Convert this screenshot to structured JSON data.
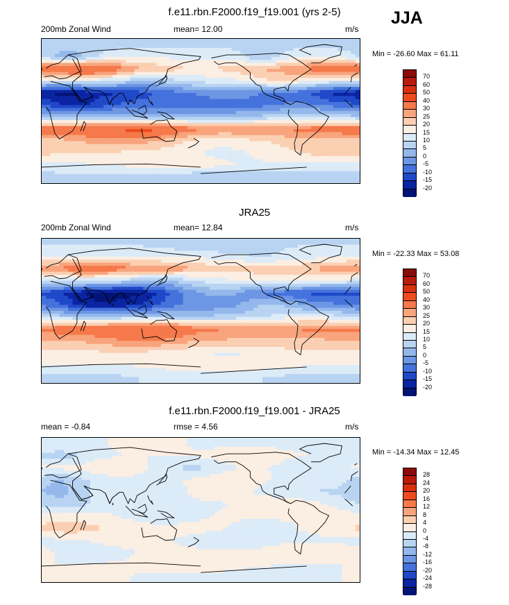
{
  "season_label": "JJA",
  "panels": [
    {
      "title": "f.e11.rbn.F2000.f19_f19.001 (yrs 2-5)",
      "left_label": "200mb Zonal Wind",
      "center_label": "mean=  12.00",
      "units": "m/s",
      "minmax": "Min = -26.60 Max =  61.11",
      "colorbar_labels": [
        "70",
        "60",
        "50",
        "40",
        "30",
        "25",
        "20",
        "15",
        "10",
        "5",
        "0",
        "-5",
        "-10",
        "-15",
        "-20"
      ],
      "colorbar_colors": [
        "#8a0b0b",
        "#b81a0c",
        "#d9310e",
        "#ef4c1e",
        "#f5794b",
        "#f8a47c",
        "#fbcfb2",
        "#fbeee2",
        "#dcebf8",
        "#b9d4f2",
        "#94b8ec",
        "#6d97e4",
        "#4572dc",
        "#1f49c9",
        "#0a24a3",
        "#031476"
      ],
      "rows": [
        {
          "v": 8,
          "blobs": []
        },
        {
          "v": 14,
          "blobs": [
            {
              "lon": 30,
              "w": 22,
              "v": 2
            },
            {
              "lon": 250,
              "w": 15,
              "v": 5
            }
          ]
        },
        {
          "v": 26,
          "blobs": [
            {
              "lon": 50,
              "w": 30,
              "v": 42
            },
            {
              "lon": 330,
              "w": 35,
              "v": 34
            },
            {
              "lon": 180,
              "w": 40,
              "v": 20
            }
          ]
        },
        {
          "v": 12,
          "blobs": [
            {
              "lon": 270,
              "w": 30,
              "v": 20
            },
            {
              "lon": 120,
              "w": 25,
              "v": 5
            }
          ]
        },
        {
          "v": -6,
          "blobs": [
            {
              "lon": 25,
              "w": 28,
              "v": -20
            },
            {
              "lon": 90,
              "w": 30,
              "v": -14
            },
            {
              "lon": 330,
              "w": 25,
              "v": -14
            },
            {
              "lon": 210,
              "w": 25,
              "v": -2
            }
          ]
        },
        {
          "v": -8,
          "blobs": [
            {
              "lon": 40,
              "w": 25,
              "v": -16
            },
            {
              "lon": 290,
              "w": 25,
              "v": -4
            }
          ]
        },
        {
          "v": 4,
          "blobs": [
            {
              "lon": 300,
              "w": 40,
              "v": 10
            }
          ]
        },
        {
          "v": 30,
          "blobs": [
            {
              "lon": 60,
              "w": 40,
              "v": 37
            },
            {
              "lon": 120,
              "w": 30,
              "v": 40
            },
            {
              "lon": 330,
              "w": 30,
              "v": 34
            }
          ]
        },
        {
          "v": 22,
          "blobs": [
            {
              "lon": 90,
              "w": 40,
              "v": 28
            },
            {
              "lon": 200,
              "w": 35,
              "v": 16
            }
          ]
        },
        {
          "v": 19,
          "blobs": [
            {
              "lon": 210,
              "w": 45,
              "v": 14
            },
            {
              "lon": 330,
              "w": 40,
              "v": 22
            }
          ]
        },
        {
          "v": 14,
          "blobs": [
            {
              "lon": 150,
              "w": 45,
              "v": 18
            }
          ]
        },
        {
          "v": 5,
          "blobs": [
            {
              "lon": 60,
              "w": 50,
              "v": 9
            }
          ]
        }
      ]
    },
    {
      "title": "JRA25",
      "left_label": "200mb Zonal Wind",
      "center_label": "mean=  12.84",
      "units": "m/s",
      "minmax": "Min = -22.33 Max =  53.08",
      "colorbar_labels": [
        "70",
        "60",
        "50",
        "40",
        "30",
        "25",
        "20",
        "15",
        "10",
        "5",
        "0",
        "-5",
        "-10",
        "-15",
        "-20"
      ],
      "colorbar_colors": [
        "#8a0b0b",
        "#b81a0c",
        "#d9310e",
        "#ef4c1e",
        "#f5794b",
        "#f8a47c",
        "#fbcfb2",
        "#fbeee2",
        "#dcebf8",
        "#b9d4f2",
        "#94b8ec",
        "#6d97e4",
        "#4572dc",
        "#1f49c9",
        "#0a24a3",
        "#031476"
      ],
      "rows": [
        {
          "v": 10,
          "blobs": [
            {
              "lon": 200,
              "w": 40,
              "v": 5
            }
          ]
        },
        {
          "v": 14,
          "blobs": [
            {
              "lon": 250,
              "w": 30,
              "v": 10
            }
          ]
        },
        {
          "v": 22,
          "blobs": [
            {
              "lon": 60,
              "w": 40,
              "v": 34
            },
            {
              "lon": 340,
              "w": 30,
              "v": 28
            },
            {
              "lon": 140,
              "w": 30,
              "v": 28
            }
          ]
        },
        {
          "v": 12,
          "blobs": [
            {
              "lon": 270,
              "w": 40,
              "v": 18
            },
            {
              "lon": 130,
              "w": 30,
              "v": 4
            }
          ]
        },
        {
          "v": -8,
          "blobs": [
            {
              "lon": 60,
              "w": 35,
              "v": -20
            },
            {
              "lon": 110,
              "w": 25,
              "v": -16
            },
            {
              "lon": 320,
              "w": 25,
              "v": -12
            },
            {
              "lon": 200,
              "w": 30,
              "v": 2
            }
          ]
        },
        {
          "v": -4,
          "blobs": [
            {
              "lon": 60,
              "w": 30,
              "v": -18
            },
            {
              "lon": 110,
              "w": 25,
              "v": -12
            },
            {
              "lon": 260,
              "w": 25,
              "v": 6
            }
          ]
        },
        {
          "v": 6,
          "blobs": [
            {
              "lon": 300,
              "w": 40,
              "v": 14
            }
          ]
        },
        {
          "v": 30,
          "blobs": [
            {
              "lon": 120,
              "w": 35,
              "v": 40
            },
            {
              "lon": 40,
              "w": 30,
              "v": 34
            },
            {
              "lon": 330,
              "w": 25,
              "v": 32
            }
          ]
        },
        {
          "v": 24,
          "blobs": [
            {
              "lon": 110,
              "w": 40,
              "v": 30
            }
          ]
        },
        {
          "v": 19,
          "blobs": [
            {
              "lon": 210,
              "w": 40,
              "v": 14
            }
          ]
        },
        {
          "v": 15,
          "blobs": [
            {
              "lon": 200,
              "w": 50,
              "v": 20
            }
          ]
        },
        {
          "v": 8,
          "blobs": [
            {
              "lon": 180,
              "w": 60,
              "v": 12
            }
          ]
        }
      ]
    },
    {
      "title": "f.e11.rbn.F2000.f19_f19.001 - JRA25",
      "left_label": "mean =  -0.84",
      "center_label": "rmse =   4.56",
      "units": "m/s",
      "minmax": "Min = -14.34 Max =  12.45",
      "colorbar_labels": [
        "28",
        "24",
        "20",
        "16",
        "12",
        "8",
        "4",
        "0",
        "-4",
        "-8",
        "-12",
        "-16",
        "-20",
        "-24",
        "-28"
      ],
      "colorbar_colors": [
        "#8a0b0b",
        "#b81a0c",
        "#d9310e",
        "#ef4c1e",
        "#f5794b",
        "#f8a47c",
        "#fbcfb2",
        "#fbeee2",
        "#dcebf8",
        "#b9d4f2",
        "#94b8ec",
        "#6d97e4",
        "#4572dc",
        "#1f49c9",
        "#0a24a3",
        "#031476"
      ],
      "rows": [
        {
          "v": -1,
          "blobs": [
            {
              "lon": 120,
              "w": 30,
              "v": 2
            }
          ]
        },
        {
          "v": 0,
          "blobs": [
            {
              "lon": 20,
              "w": 25,
              "v": -6
            },
            {
              "lon": 230,
              "w": 30,
              "v": 3
            }
          ]
        },
        {
          "v": 1,
          "blobs": [
            {
              "lon": 170,
              "w": 30,
              "v": -5
            },
            {
              "lon": 80,
              "w": 25,
              "v": 3
            },
            {
              "lon": 300,
              "w": 25,
              "v": -3
            }
          ]
        },
        {
          "v": -1,
          "blobs": [
            {
              "lon": 20,
              "w": 25,
              "v": -8
            },
            {
              "lon": 210,
              "w": 30,
              "v": 3
            }
          ]
        },
        {
          "v": -2,
          "blobs": [
            {
              "lon": 15,
              "w": 25,
              "v": -9
            },
            {
              "lon": 200,
              "w": 30,
              "v": 2
            },
            {
              "lon": 310,
              "w": 25,
              "v": -4
            }
          ]
        },
        {
          "v": -1,
          "blobs": [
            {
              "lon": 25,
              "w": 25,
              "v": -7
            },
            {
              "lon": 270,
              "w": 35,
              "v": 3
            }
          ]
        },
        {
          "v": 1,
          "blobs": [
            {
              "lon": 140,
              "w": 30,
              "v": -4
            },
            {
              "lon": 330,
              "w": 25,
              "v": 2
            }
          ]
        },
        {
          "v": 2,
          "blobs": [
            {
              "lon": 30,
              "w": 30,
              "v": 7
            },
            {
              "lon": 250,
              "w": 30,
              "v": -3
            }
          ]
        },
        {
          "v": -1,
          "blobs": [
            {
              "lon": 100,
              "w": 30,
              "v": 3
            },
            {
              "lon": 220,
              "w": 30,
              "v": -4
            }
          ]
        },
        {
          "v": 1,
          "blobs": [
            {
              "lon": 60,
              "w": 30,
              "v": -3
            },
            {
              "lon": 300,
              "w": 30,
              "v": 4
            }
          ]
        },
        {
          "v": 0,
          "blobs": [
            {
              "lon": 160,
              "w": 40,
              "v": 3
            }
          ]
        },
        {
          "v": -1,
          "blobs": [
            {
              "lon": 40,
              "w": 40,
              "v": 2
            }
          ]
        }
      ]
    }
  ]
}
